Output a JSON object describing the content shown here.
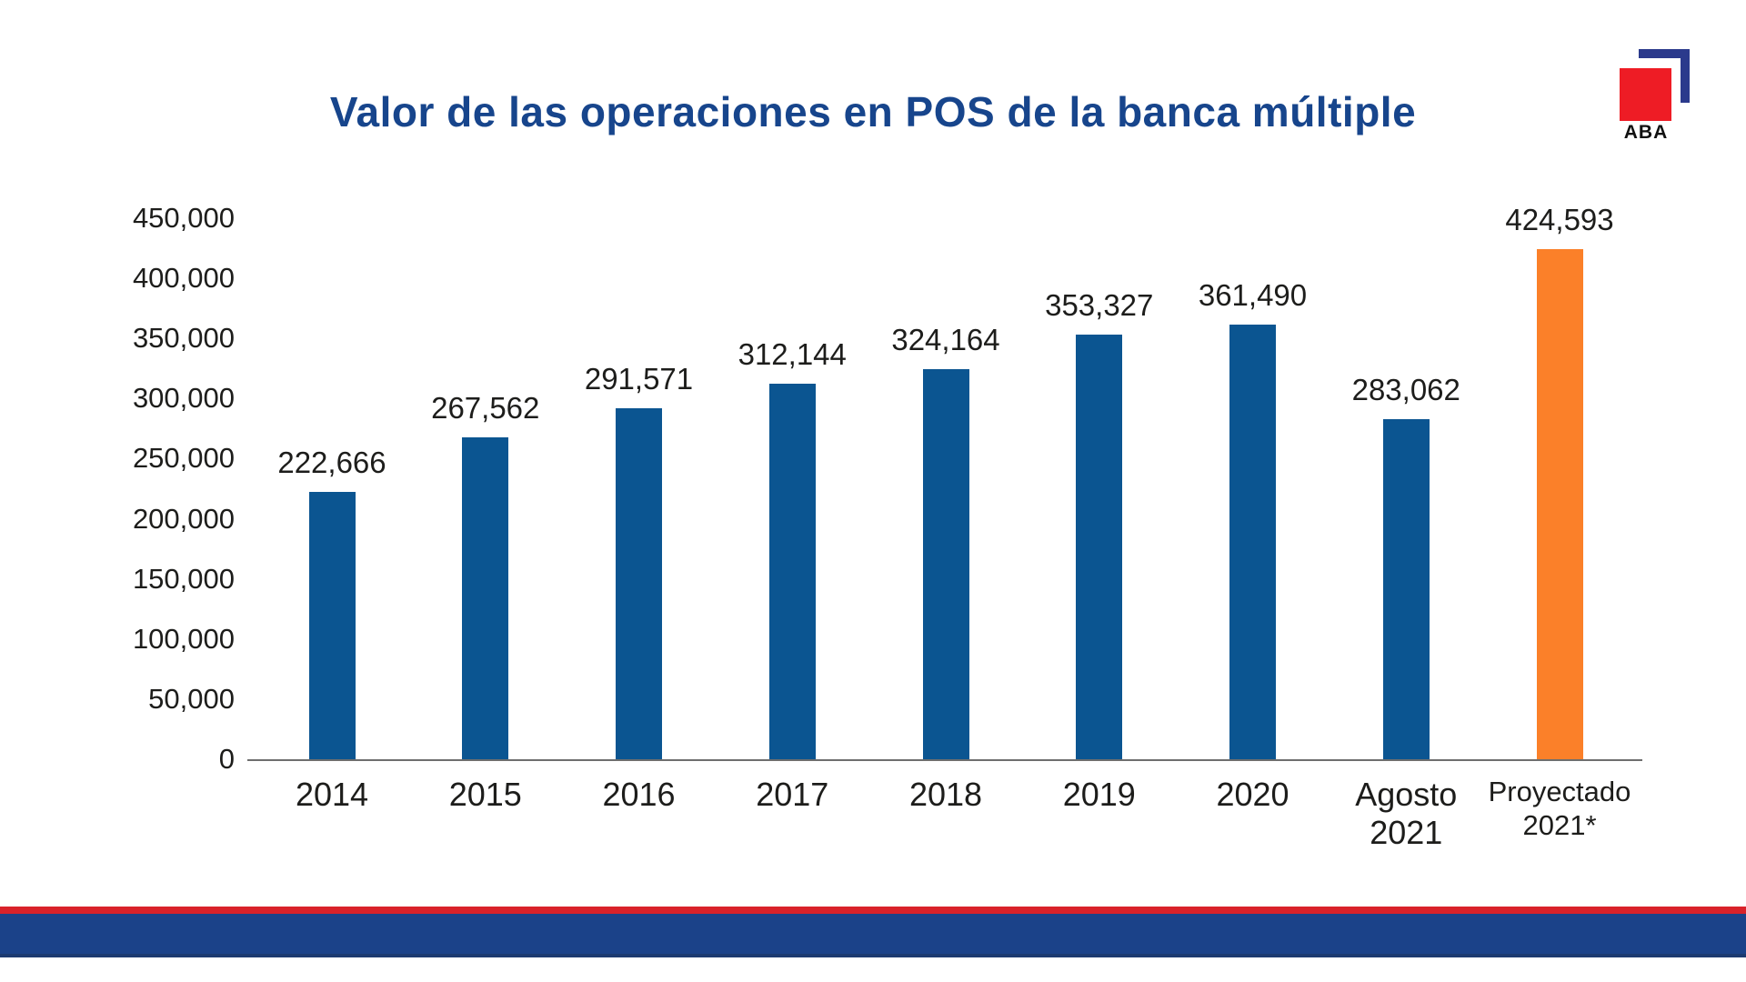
{
  "title": "Valor de las operaciones en POS de la banca múltiple",
  "logo": {
    "text": "ABA"
  },
  "colors": {
    "title": "#17458c",
    "bar": "#0b5591",
    "highlight": "#fb8029",
    "axis_line": "#6e6e6e",
    "label_text": "#1d1d1b",
    "footer_red": "#d9222a",
    "footer_blue": "#1b4289",
    "footer_navy": "#1c3a70",
    "logo_red": "#ee1c25",
    "logo_blue": "#2b3a8c"
  },
  "chart_data": {
    "type": "bar",
    "title": "Valor de las operaciones en POS de la banca múltiple",
    "categories": [
      "2014",
      "2015",
      "2016",
      "2017",
      "2018",
      "2019",
      "2020",
      "Agosto\n2021",
      "Proyectado\n2021*"
    ],
    "values": [
      222666,
      267562,
      291571,
      312144,
      324164,
      353327,
      361490,
      283062,
      424593
    ],
    "value_labels": [
      "222,666",
      "267,562",
      "291,571",
      "312,144",
      "324,164",
      "353,327",
      "361,490",
      "283,062",
      "424,593"
    ],
    "highlight_index": 8,
    "xlabel": "",
    "ylabel": "",
    "ylim": [
      0,
      450000
    ],
    "yticks": [
      0,
      50000,
      100000,
      150000,
      200000,
      250000,
      300000,
      350000,
      400000,
      450000
    ],
    "ytick_labels": [
      "0",
      "50,000",
      "100,000",
      "150,000",
      "200,000",
      "250,000",
      "300,000",
      "350,000",
      "400,000",
      "450,000"
    ],
    "grid": false,
    "legend": "none",
    "category_font_sizes": [
      36,
      36,
      36,
      36,
      36,
      36,
      36,
      36,
      31
    ]
  }
}
